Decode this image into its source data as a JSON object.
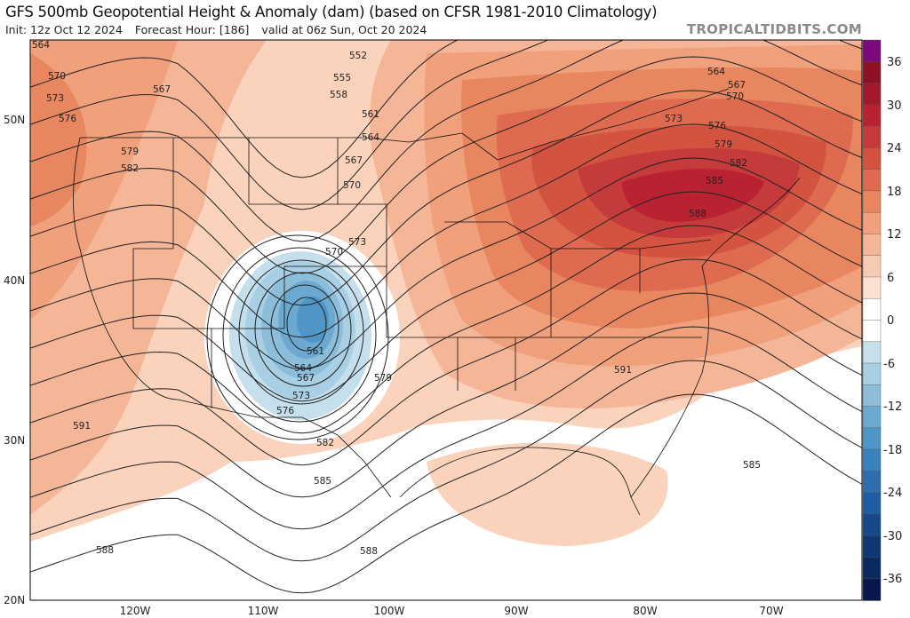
{
  "header": {
    "title": "GFS 500mb Geopotential Height & Anomaly (dam) (based on CFSR 1981-2010 Climatology)",
    "init": "Init: 12z Oct 12 2024",
    "forecast_hour": "Forecast Hour: [186]",
    "valid": "valid at 06z Sun, Oct 20 2024",
    "brand": "TROPICALTIDBITS.COM"
  },
  "axes": {
    "lat_labels": [
      "50N",
      "40N",
      "30N",
      "20N"
    ],
    "lon_labels": [
      "120W",
      "110W",
      "100W",
      "90W",
      "80W",
      "70W"
    ]
  },
  "colorbar": {
    "tick_labels": [
      "36",
      "30",
      "24",
      "18",
      "12",
      "6",
      "0",
      "-6",
      "-12",
      "-18",
      "-24",
      "-30",
      "-36"
    ],
    "colors": [
      "#7a0a7d",
      "#8c1127",
      "#a3182b",
      "#b82231",
      "#c53a3a",
      "#d2533f",
      "#de6b4f",
      "#e8865f",
      "#f0a07b",
      "#f5b597",
      "#f9cab3",
      "#fde0d2",
      "#ffffff",
      "#ffffff",
      "#c5dfec",
      "#a8cfe3",
      "#8cbdd9",
      "#6ba9d0",
      "#4f96c6",
      "#3a82bd",
      "#2c6eb0",
      "#1f5ca4",
      "#17498a",
      "#0f3872",
      "#082a5e",
      "#08174d"
    ]
  },
  "contour_labels": [
    "564",
    "570",
    "573",
    "576",
    "579",
    "582",
    "567",
    "552",
    "555",
    "558",
    "561",
    "564",
    "567",
    "570",
    "573",
    "570",
    "561",
    "564",
    "567",
    "573",
    "576",
    "579",
    "582",
    "585",
    "588",
    "588",
    "591",
    "591",
    "585",
    "564",
    "567",
    "570",
    "573",
    "576",
    "579",
    "582",
    "585",
    "588"
  ]
}
